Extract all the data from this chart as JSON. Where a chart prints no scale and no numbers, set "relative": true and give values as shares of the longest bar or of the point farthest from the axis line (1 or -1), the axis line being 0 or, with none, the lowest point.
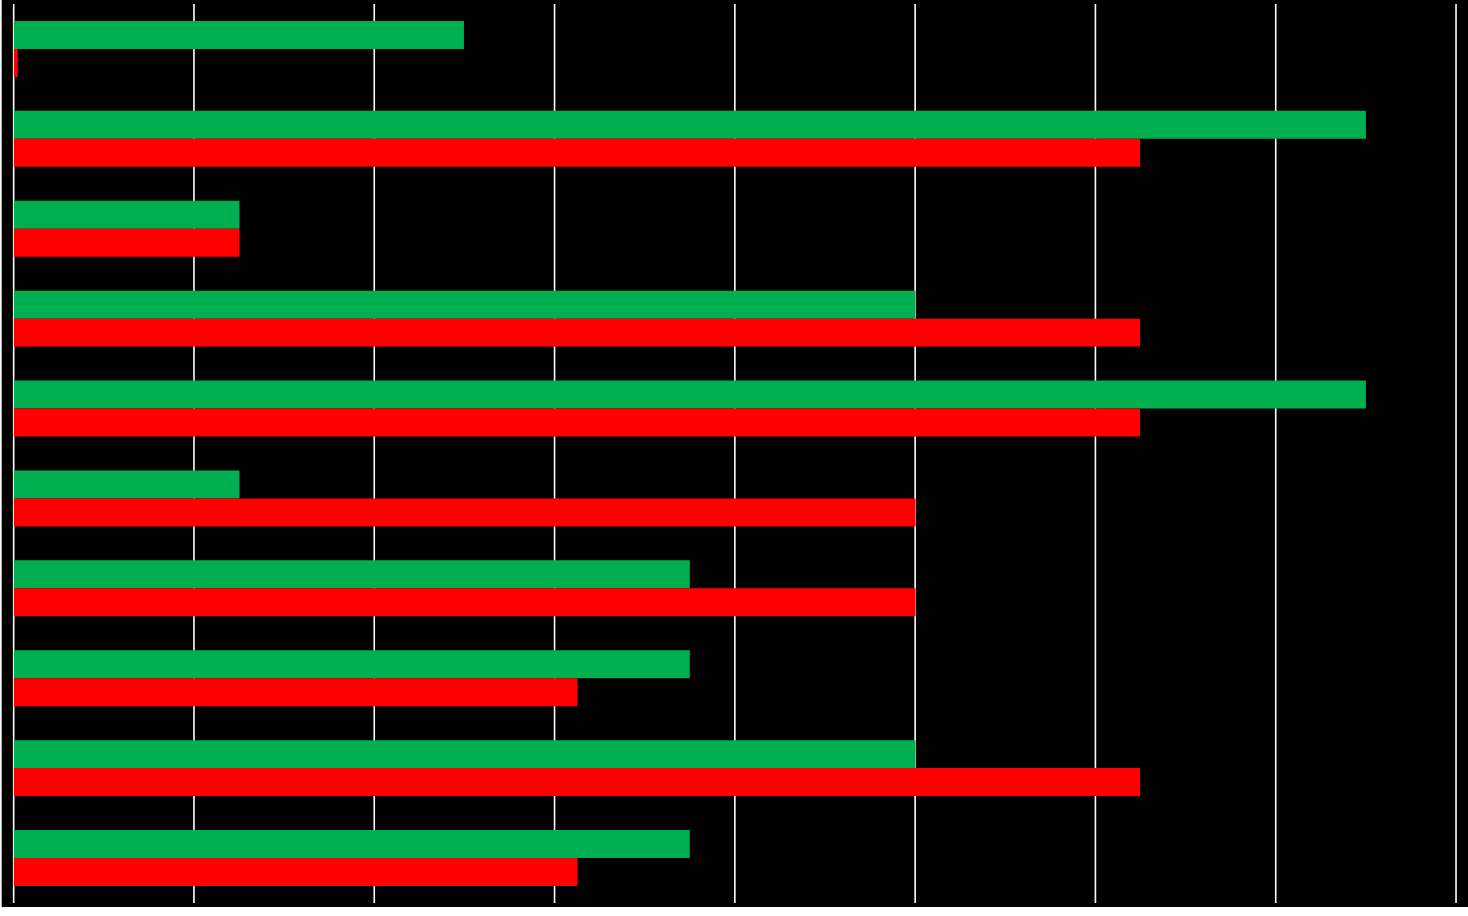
{
  "chart_data": {
    "type": "bar",
    "orientation": "horizontal",
    "relative": true,
    "grid": "x",
    "categories": [
      null,
      null,
      null,
      null,
      null,
      null,
      null,
      null,
      null,
      null
    ],
    "series": [
      {
        "color": "#00b050",
        "values": [
          0.333,
          1,
          0.167,
          0.667,
          1,
          0.167,
          0.5,
          0.5,
          0.667,
          0.5
        ]
      },
      {
        "color": "#ff0000",
        "values": [
          0.003,
          0.833,
          0.167,
          0.833,
          0.833,
          0.667,
          0.667,
          0.417,
          0.833,
          0.417
        ]
      }
    ]
  }
}
